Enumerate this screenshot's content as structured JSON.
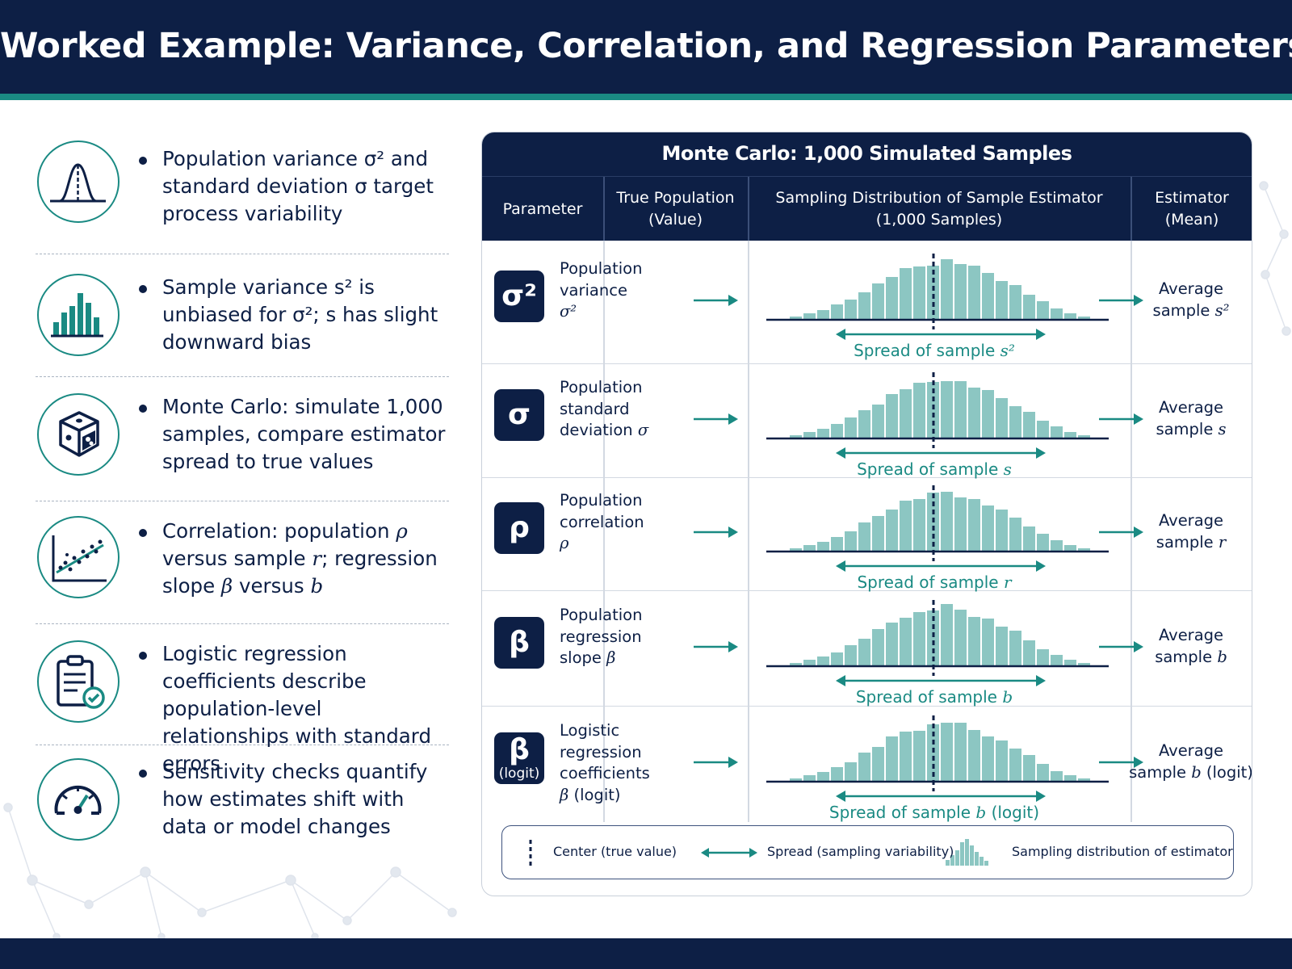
{
  "title": "Worked Example: Variance, Correlation, and Regression Parameters",
  "left_items": [
    {
      "icon": "bell-curve-icon",
      "text": "Population variance σ² and standard deviation σ target process variability"
    },
    {
      "icon": "bar-chart-icon",
      "text": "Sample variance s² is unbiased for σ²; s has slight downward bias"
    },
    {
      "icon": "dice-icon",
      "text": "Monte Carlo: simulate 1,000 samples, compare estimator spread to true values"
    },
    {
      "icon": "scatter-plot-icon",
      "text": "Correlation: population ρ versus sample r; regression slope β versus b"
    },
    {
      "icon": "clipboard-check-icon",
      "text": "Logistic regression coefficients describe population-level relationships with standard errors"
    },
    {
      "icon": "gauge-icon",
      "text": "Sensitivity checks quantify how estimates shift with data or model changes"
    }
  ],
  "table": {
    "title": "Monte Carlo: 1,000 Simulated Samples",
    "headers": {
      "parameter": "Parameter",
      "true_population_1": "True Population",
      "true_population_2": "(Value)",
      "sampling_1": "Sampling Distribution of Sample Estimator",
      "sampling_2": "(1,000 Samples)",
      "estimator_1": "Estimator",
      "estimator_2": "(Mean)"
    },
    "rows": [
      {
        "symbol": "σ²",
        "symbol_sub": "",
        "label_lines": [
          "Population",
          "variance"
        ],
        "label_math": "σ²",
        "spread_prefix": "Spread of sample ",
        "spread_math": "s²",
        "spread_suffix": "",
        "est_line1": "Average",
        "est_prefix": "sample ",
        "est_math": "s²",
        "est_suffix": ""
      },
      {
        "symbol": "σ",
        "symbol_sub": "",
        "label_lines": [
          "Population",
          "standard"
        ],
        "label_prefix": "deviation ",
        "label_math": "σ",
        "spread_prefix": "Spread of sample ",
        "spread_math": "s",
        "spread_suffix": "",
        "est_line1": "Average",
        "est_prefix": "sample ",
        "est_math": "s",
        "est_suffix": ""
      },
      {
        "symbol": "ρ",
        "symbol_sub": "",
        "label_lines": [
          "Population",
          "correlation"
        ],
        "label_math": "ρ",
        "spread_prefix": "Spread of sample ",
        "spread_math": "r",
        "spread_suffix": "",
        "est_line1": "Average",
        "est_prefix": "sample ",
        "est_math": "r",
        "est_suffix": ""
      },
      {
        "symbol": "β",
        "symbol_sub": "",
        "label_lines": [
          "Population",
          "regression"
        ],
        "label_prefix": "slope ",
        "label_math": "β",
        "spread_prefix": "Spread of sample ",
        "spread_math": "b",
        "spread_suffix": "",
        "est_line1": "Average",
        "est_prefix": "sample ",
        "est_math": "b",
        "est_suffix": ""
      },
      {
        "symbol": "β",
        "symbol_sub": "(logit)",
        "label_lines": [
          "Logistic regression",
          "coefficients"
        ],
        "label_math": "β",
        "label_suffix": " (logit)",
        "spread_prefix": "Spread of sample ",
        "spread_math": "b",
        "spread_suffix": " (logit)",
        "est_line1": "Average",
        "est_prefix": "sample ",
        "est_math": "b",
        "est_suffix": " (logit)"
      }
    ],
    "legend": {
      "center": "Center (true value)",
      "spread": "Spread (sampling variability)",
      "distribution": "Sampling distribution of estimator"
    }
  },
  "colors": {
    "navy": "#0d1f45",
    "teal": "#1a8a83",
    "bar_fill": "#8cc6c2"
  }
}
